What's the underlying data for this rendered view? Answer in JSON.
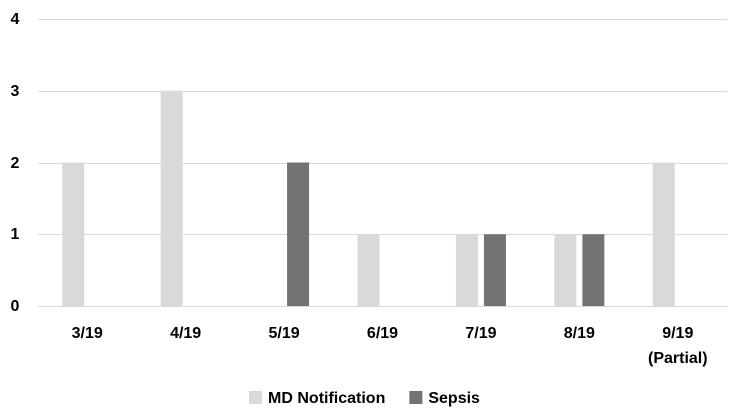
{
  "chart_data": {
    "type": "bar",
    "categories": [
      [
        "3/19"
      ],
      [
        "4/19"
      ],
      [
        "5/19"
      ],
      [
        "6/19"
      ],
      [
        "7/19"
      ],
      [
        "8/19"
      ],
      [
        "9/19",
        "(Partial)"
      ]
    ],
    "series": [
      {
        "name": "MD Notification",
        "color": "#d9d9d9",
        "values": [
          2,
          3,
          0,
          1,
          1,
          1,
          2
        ]
      },
      {
        "name": "Sepsis",
        "color": "#737373",
        "values": [
          0,
          0,
          2,
          0,
          1,
          1,
          0
        ]
      }
    ],
    "yticks": [
      "0",
      "1",
      "2",
      "3",
      "4"
    ],
    "ylim": [
      0,
      4
    ],
    "grid": true,
    "gridColor": "#d9d9d9",
    "legend": "bottom-center"
  }
}
